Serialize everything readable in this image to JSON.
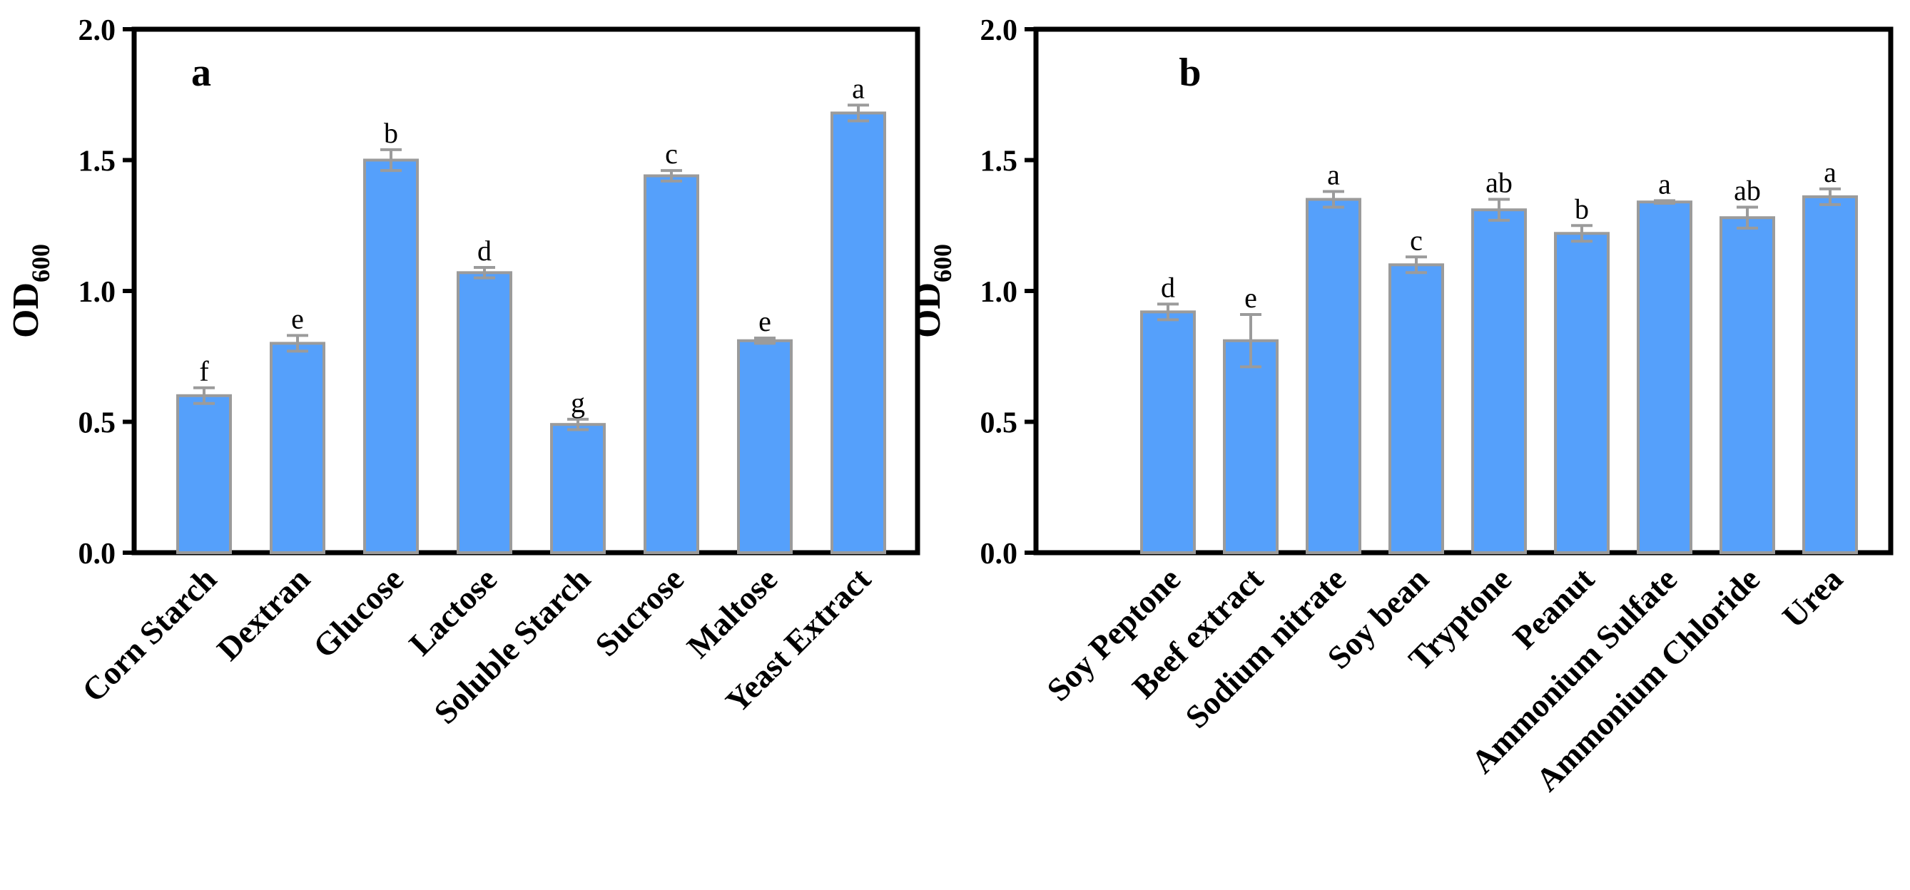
{
  "colors": {
    "bar_fill": "#55a0fb",
    "bar_edge": "#9b9b9b",
    "error_bar": "#9b9b9b",
    "axis": "#000000"
  },
  "chart_data": [
    {
      "type": "bar",
      "panel_label": "a",
      "title": "",
      "xlabel": "",
      "ylabel": "OD",
      "ylabel_subscript": "600",
      "ylim": [
        0,
        2.0
      ],
      "yticks": [
        "0.0",
        "0.5",
        "1.0",
        "1.5",
        "2.0"
      ],
      "categories": [
        "Corn Starch",
        "Dextran",
        "Glucose",
        "Lactose",
        "Soluble Starch",
        "Sucrose",
        "Maltose",
        "Yeast Extract"
      ],
      "values": [
        0.6,
        0.8,
        1.5,
        1.07,
        0.49,
        1.44,
        0.81,
        1.68
      ],
      "errors": [
        0.03,
        0.03,
        0.04,
        0.02,
        0.02,
        0.02,
        0.01,
        0.03
      ],
      "significance": [
        "f",
        "e",
        "b",
        "d",
        "g",
        "c",
        "e",
        "a"
      ],
      "grid": false
    },
    {
      "type": "bar",
      "panel_label": "b",
      "title": "",
      "xlabel": "",
      "ylabel": "OD",
      "ylabel_subscript": "600",
      "ylim": [
        0,
        2.0
      ],
      "yticks": [
        "0.0",
        "0.5",
        "1.0",
        "1.5",
        "2.0"
      ],
      "categories": [
        "Soy Peptone",
        "Beef extract",
        "Sodium nitrate",
        "Soy bean",
        "Tryptone",
        "Peanut",
        "Ammonium Sulfate",
        "Ammonium Chloride",
        "Urea"
      ],
      "values": [
        0.92,
        0.81,
        1.35,
        1.1,
        1.31,
        1.22,
        1.34,
        1.28,
        1.36
      ],
      "errors": [
        0.03,
        0.1,
        0.03,
        0.03,
        0.04,
        0.03,
        0.005,
        0.04,
        0.03
      ],
      "significance": [
        "d",
        "e",
        "a",
        "c",
        "ab",
        "b",
        "a",
        "ab",
        "a"
      ],
      "grid": false
    }
  ]
}
